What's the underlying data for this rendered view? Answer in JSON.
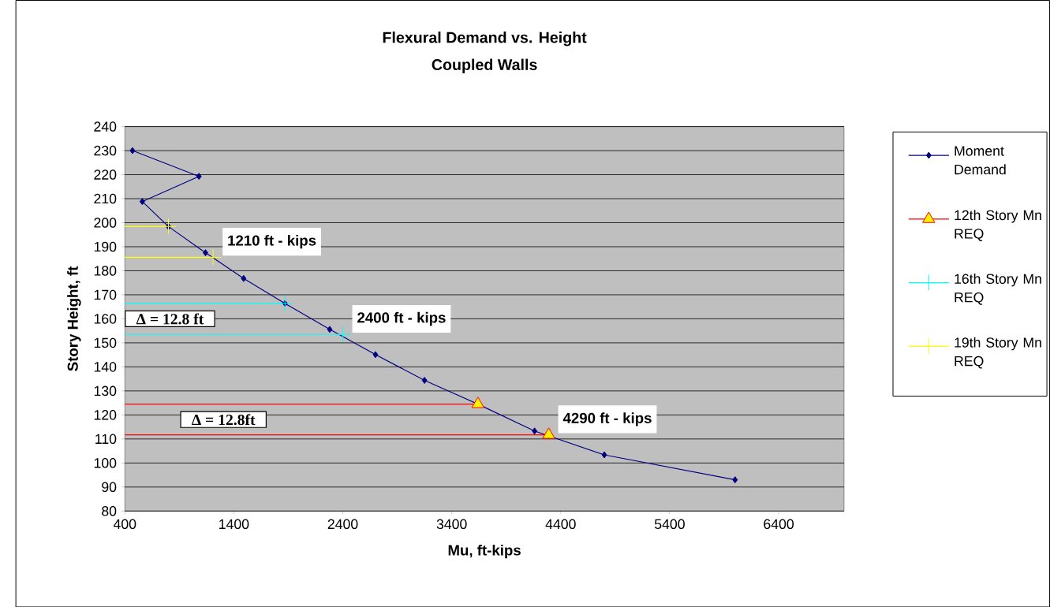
{
  "chart_data": {
    "type": "line",
    "title": "Flexural Demand vs. Height",
    "subtitle": "Coupled Walls",
    "xlabel": "Mu, ft-kips",
    "ylabel": "Story Height, ft",
    "xlim": [
      400,
      7000
    ],
    "ylim": [
      80,
      240
    ],
    "xticks": [
      400,
      1400,
      2400,
      3400,
      4400,
      5400,
      6400
    ],
    "yticks": [
      80,
      90,
      100,
      110,
      120,
      130,
      140,
      150,
      160,
      170,
      180,
      190,
      200,
      210,
      220,
      230,
      240
    ],
    "grid": "y",
    "legend": "right",
    "series": [
      {
        "name": "Moment Demand",
        "color": "#000080",
        "marker": "diamond",
        "x": [
          470,
          1080,
          560,
          800,
          1140,
          1490,
          1870,
          2280,
          2700,
          3150,
          3640,
          4160,
          4800,
          6000
        ],
        "values": [
          230,
          219.3,
          208.8,
          198.4,
          187.5,
          176.8,
          166.4,
          155.6,
          145.1,
          134.4,
          124.5,
          113.3,
          103.4,
          93.0
        ]
      },
      {
        "name": "12th Story Mn REQ",
        "color": "#ff0000",
        "marker": "triangle",
        "x": [
          400,
          3640,
          null,
          400,
          4290
        ],
        "values": [
          124.5,
          124.5,
          null,
          111.7,
          111.7
        ]
      },
      {
        "name": "16th Story Mn REQ",
        "color": "#00ffff",
        "marker": "cross",
        "x": [
          400,
          1870,
          null,
          400,
          2400
        ],
        "values": [
          166.4,
          166.4,
          null,
          153.5,
          153.5
        ]
      },
      {
        "name": "19th Story Mn REQ",
        "color": "#ffff00",
        "marker": "cross",
        "x": [
          400,
          800,
          null,
          400,
          1210
        ],
        "values": [
          198.4,
          198.4,
          null,
          185.6,
          185.6
        ]
      }
    ],
    "annotations": [
      {
        "text": "1210 ft - kips",
        "x": 1210,
        "y": 185.6
      },
      {
        "text": "2400 ft - kips",
        "x": 2400,
        "y": 153.5
      },
      {
        "text": "4290  ft - kips",
        "x": 4290,
        "y": 111.7
      },
      "Δ = 12.8 ft",
      "Δ = 12.8ft"
    ]
  }
}
